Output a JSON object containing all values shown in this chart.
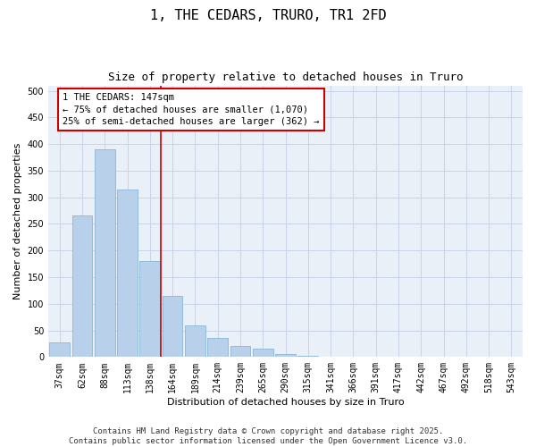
{
  "title_line1": "1, THE CEDARS, TRURO, TR1 2FD",
  "title_line2": "Size of property relative to detached houses in Truro",
  "xlabel": "Distribution of detached houses by size in Truro",
  "ylabel": "Number of detached properties",
  "categories": [
    "37sqm",
    "62sqm",
    "88sqm",
    "113sqm",
    "138sqm",
    "164sqm",
    "189sqm",
    "214sqm",
    "239sqm",
    "265sqm",
    "290sqm",
    "315sqm",
    "341sqm",
    "366sqm",
    "391sqm",
    "417sqm",
    "442sqm",
    "467sqm",
    "492sqm",
    "518sqm",
    "543sqm"
  ],
  "values": [
    28,
    265,
    390,
    315,
    180,
    115,
    60,
    35,
    20,
    15,
    5,
    2,
    1,
    1,
    1,
    0,
    0,
    0,
    0,
    0,
    0
  ],
  "bar_color": "#b8d0ea",
  "bar_edge_color": "#7aafd4",
  "grid_color": "#c8d4e8",
  "background_color": "#eaf0f8",
  "vline_x": 4.5,
  "vline_color": "#cc0000",
  "annotation_text": "1 THE CEDARS: 147sqm\n← 75% of detached houses are smaller (1,070)\n25% of semi-detached houses are larger (362) →",
  "annotation_box_color": "#cc0000",
  "ylim": [
    0,
    510
  ],
  "yticks": [
    0,
    50,
    100,
    150,
    200,
    250,
    300,
    350,
    400,
    450,
    500
  ],
  "footer_text": "Contains HM Land Registry data © Crown copyright and database right 2025.\nContains public sector information licensed under the Open Government Licence v3.0.",
  "title_fontsize": 11,
  "subtitle_fontsize": 9,
  "axis_label_fontsize": 8,
  "tick_fontsize": 7,
  "annotation_fontsize": 7.5,
  "footer_fontsize": 6.5
}
